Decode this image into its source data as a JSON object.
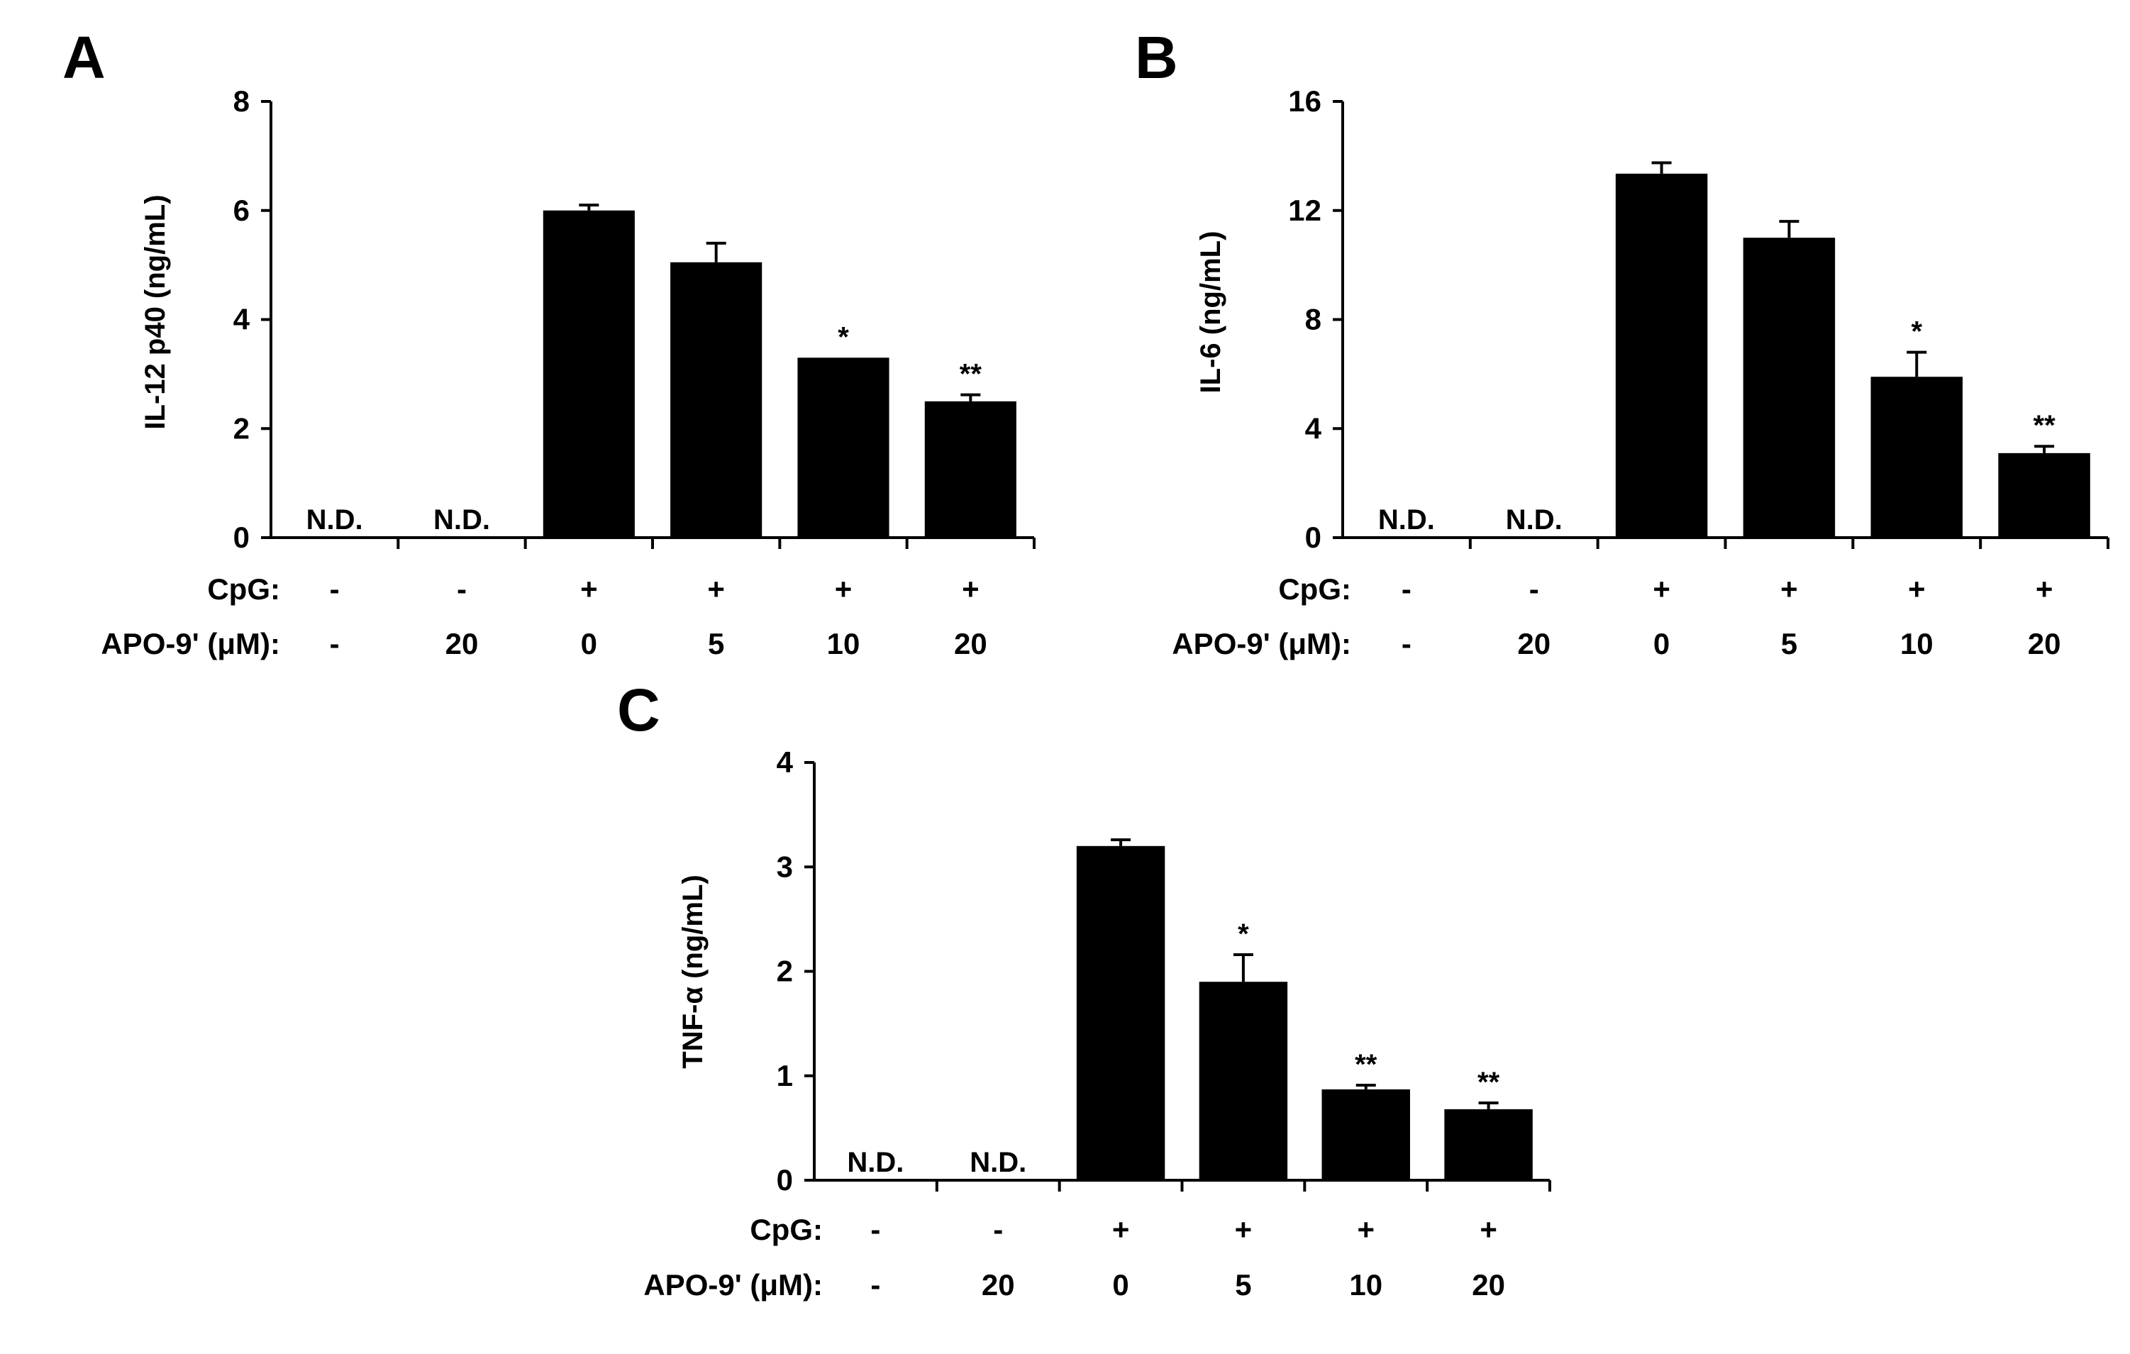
{
  "colors": {
    "bar": "#000000",
    "axis": "#000000",
    "background": "#ffffff"
  },
  "chart_data": [
    {
      "type": "bar",
      "panel": "A",
      "ylabel": "IL-12 p40 (ng/mL)",
      "ylim": [
        0,
        8
      ],
      "yticks": [
        0,
        2,
        4,
        6,
        8
      ],
      "grid": false,
      "row_labels": [
        "CpG:",
        "APO-9' (μM):"
      ],
      "categories": [
        {
          "cpg": "-",
          "apo": "-"
        },
        {
          "cpg": "-",
          "apo": "20"
        },
        {
          "cpg": "+",
          "apo": "0"
        },
        {
          "cpg": "+",
          "apo": "5"
        },
        {
          "cpg": "+",
          "apo": "10"
        },
        {
          "cpg": "+",
          "apo": "20"
        }
      ],
      "values": [
        null,
        null,
        6.0,
        5.05,
        3.3,
        2.5
      ],
      "errors": [
        null,
        null,
        0.1,
        0.35,
        0.0,
        0.12
      ],
      "annotations": [
        "N.D.",
        "N.D.",
        "",
        "",
        "*",
        "**"
      ]
    },
    {
      "type": "bar",
      "panel": "B",
      "ylabel": "IL-6 (ng/mL)",
      "ylim": [
        0,
        16
      ],
      "yticks": [
        0,
        4,
        8,
        12,
        16
      ],
      "grid": false,
      "row_labels": [
        "CpG:",
        "APO-9' (μM):"
      ],
      "categories": [
        {
          "cpg": "-",
          "apo": "-"
        },
        {
          "cpg": "-",
          "apo": "20"
        },
        {
          "cpg": "+",
          "apo": "0"
        },
        {
          "cpg": "+",
          "apo": "5"
        },
        {
          "cpg": "+",
          "apo": "10"
        },
        {
          "cpg": "+",
          "apo": "20"
        }
      ],
      "values": [
        null,
        null,
        13.35,
        11.0,
        5.9,
        3.1
      ],
      "errors": [
        null,
        null,
        0.4,
        0.6,
        0.9,
        0.25
      ],
      "annotations": [
        "N.D.",
        "N.D.",
        "",
        "",
        "*",
        "**"
      ]
    },
    {
      "type": "bar",
      "panel": "C",
      "ylabel": "TNF-α (ng/mL)",
      "ylim": [
        0,
        4
      ],
      "yticks": [
        0,
        1,
        2,
        3,
        4
      ],
      "grid": false,
      "row_labels": [
        "CpG:",
        "APO-9' (μM):"
      ],
      "categories": [
        {
          "cpg": "-",
          "apo": "-"
        },
        {
          "cpg": "-",
          "apo": "20"
        },
        {
          "cpg": "+",
          "apo": "0"
        },
        {
          "cpg": "+",
          "apo": "5"
        },
        {
          "cpg": "+",
          "apo": "10"
        },
        {
          "cpg": "+",
          "apo": "20"
        }
      ],
      "values": [
        null,
        null,
        3.2,
        1.9,
        0.87,
        0.68
      ],
      "errors": [
        null,
        null,
        0.06,
        0.26,
        0.04,
        0.06
      ],
      "annotations": [
        "N.D.",
        "N.D.",
        "",
        "*",
        "**",
        "**"
      ]
    }
  ]
}
